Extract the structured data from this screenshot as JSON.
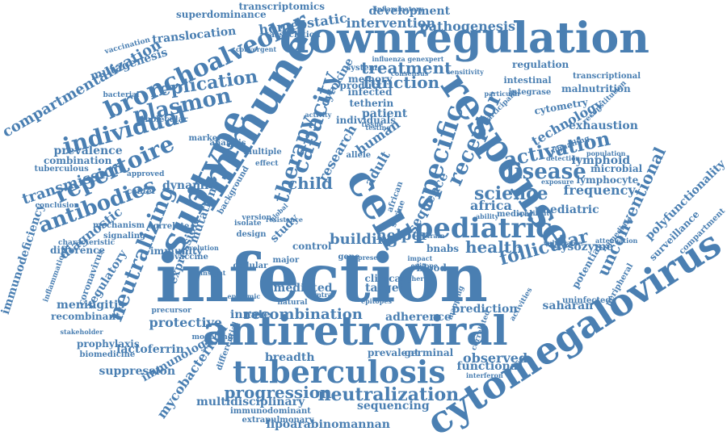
{
  "word_color": "#4a7fb2",
  "words": [
    "infection",
    "antiretroviral",
    "cytomegalovirus",
    "downregulation",
    "response",
    "immune",
    "subtype",
    "cell",
    "tuberculosis",
    "bronchoalveolar",
    "repertoire",
    "antibodies",
    "individual",
    "plasmon",
    "replication",
    "pediatric",
    "specific",
    "capacity",
    "therapy",
    "receptor",
    "activation",
    "disease",
    "science",
    "neutralizing",
    "neutralization",
    "progression",
    "follicular",
    "health",
    "unconventional",
    "compartmentalization",
    "transmission",
    "function",
    "treatment",
    "intervention",
    "pathogenesis",
    "development",
    "homeostatic",
    "superdominance",
    "transcriptomics",
    "translocation",
    "mutagenesis",
    "vaccination",
    "prevalence",
    "combination",
    "tuberculous",
    "immunodeficiency",
    "coronavirus",
    "inflammation",
    "meningitis",
    "recombinant",
    "prophylaxis",
    "biomedicine",
    "difference",
    "diagnostic",
    "regulatory",
    "child",
    "africa",
    "technology",
    "frequency",
    "exhaustion",
    "lymphoid",
    "paediatric",
    "lysozyme",
    "polyfunctionality",
    "surveillance",
    "compartment",
    "cytometry",
    "malnutrition",
    "regulation",
    "transcriptional",
    "intestinal",
    "integrase",
    "tetherin",
    "infected",
    "patient",
    "human",
    "adult",
    "sequence",
    "microbial",
    "lymphocyte",
    "mutation",
    "dynamic",
    "expression",
    "lactoferrin",
    "protective",
    "immunology",
    "suppression",
    "mycobacterium",
    "multidisciplinary",
    "immunodominant",
    "extrapulmonary",
    "lipoarabinomannan",
    "sequencing",
    "recombination",
    "breadth",
    "prevalent",
    "germinal",
    "observed",
    "functional",
    "interferon",
    "prediction",
    "saharan",
    "uninfected",
    "adherence",
    "mediated",
    "clinical",
    "target",
    "higher",
    "epitope",
    "impact",
    "innate",
    "building",
    "helper",
    "control",
    "study",
    "blood",
    "bnabs",
    "center",
    "immunity",
    "vaccine",
    "cellular",
    "background",
    "analysis",
    "marker",
    "molecular",
    "bacterial",
    "individuals",
    "system",
    "memory",
    "product",
    "cytokine",
    "research",
    "association",
    "inflammatory",
    "convergent",
    "influenza",
    "genexpert",
    "consensus",
    "sensitivity",
    "particular",
    "participant",
    "reconstitution",
    "signalling",
    "population",
    "detection",
    "exposure",
    "medical",
    "ability",
    "specificity",
    "potential",
    "peripheral",
    "immediate",
    "attenuation",
    "vulnerable",
    "activity",
    "testing",
    "tissue",
    "allele",
    "african",
    "serine",
    "natural",
    "central",
    "present",
    "gene",
    "major",
    "design",
    "isolate",
    "conclusion",
    "mechanism",
    "signaling",
    "characteristic",
    "approved",
    "insight",
    "precursor",
    "epidemic",
    "correlate",
    "stakeholder",
    "modelling",
    "differential",
    "correlated",
    "activities",
    "epitopes",
    "mapping",
    "strain",
    "resistance",
    "evolution",
    "version",
    "global",
    "effect",
    "multiple"
  ]
}
